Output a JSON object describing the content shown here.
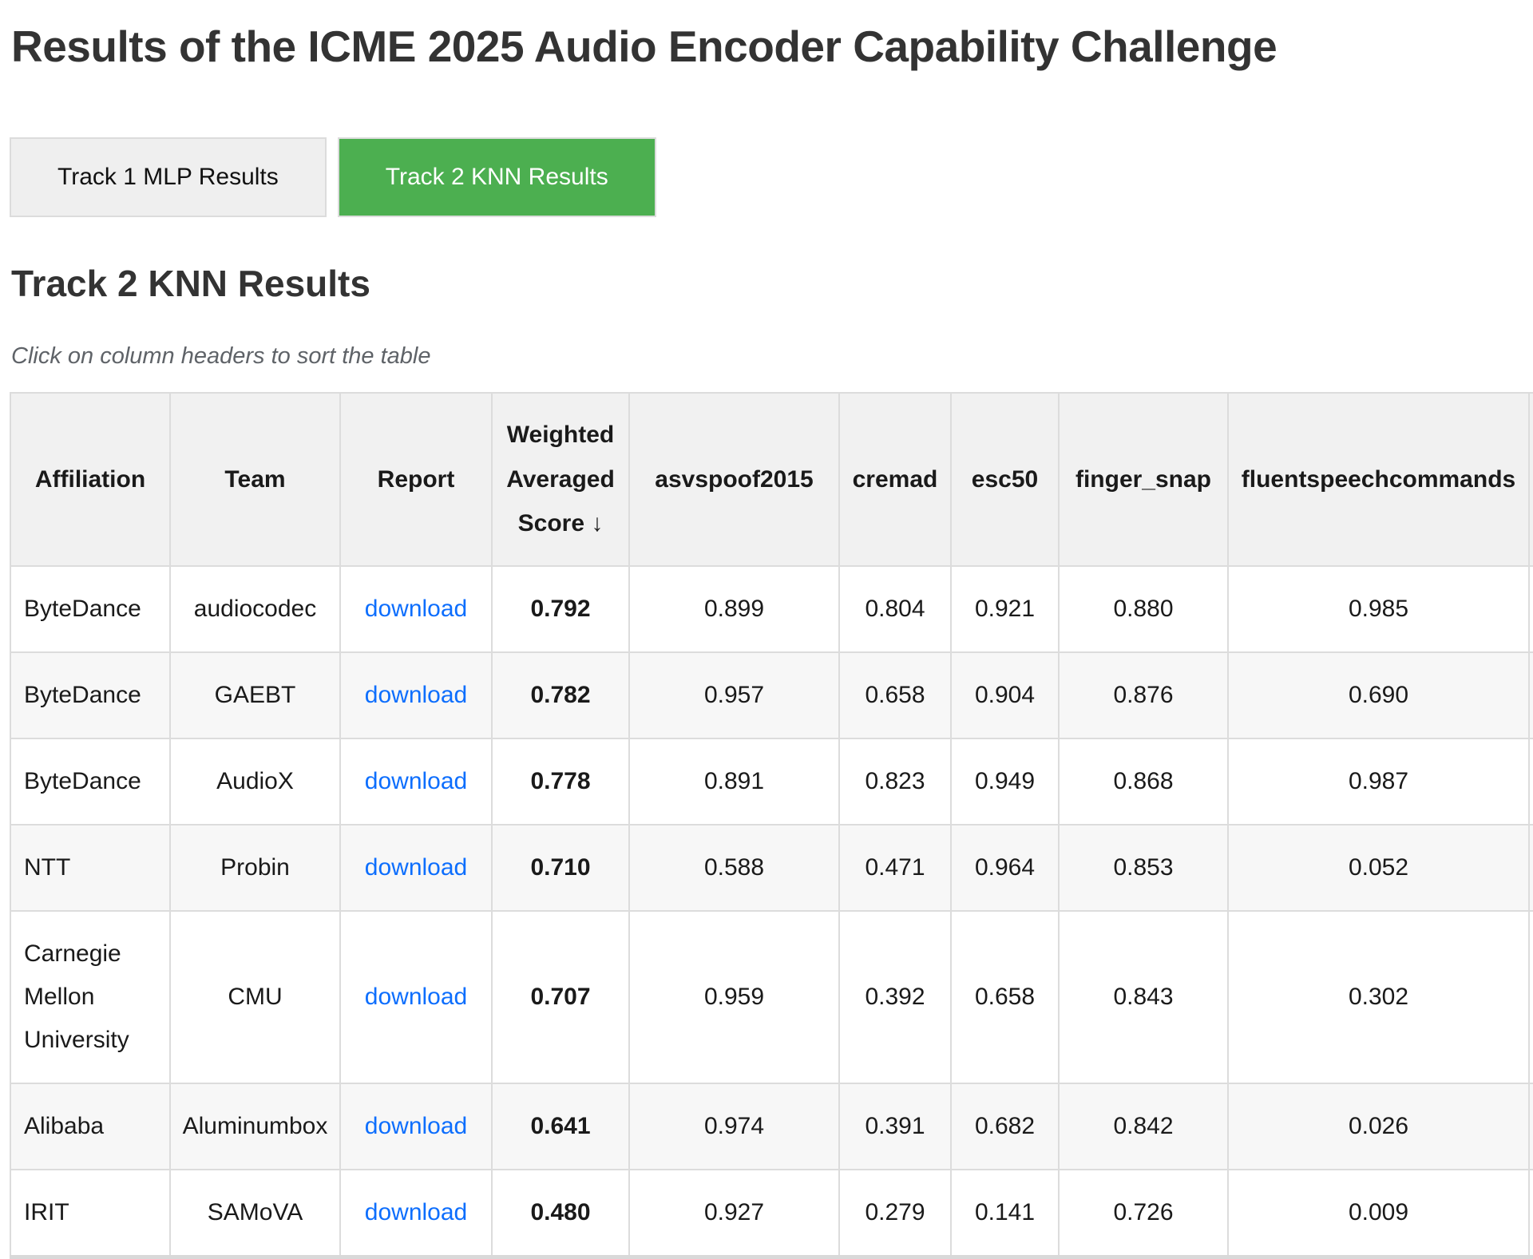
{
  "page": {
    "title": "Results of the ICME 2025 Audio Encoder Capability Challenge",
    "section_heading": "Track 2 KNN Results",
    "sort_hint": "Click on column headers to sort the table"
  },
  "tabs": [
    {
      "label": "Track 1 MLP Results",
      "active": false
    },
    {
      "label": "Track 2 KNN Results",
      "active": true
    }
  ],
  "table": {
    "columns": [
      {
        "key": "affiliation",
        "label": "Affiliation",
        "align": "left"
      },
      {
        "key": "team",
        "label": "Team"
      },
      {
        "key": "report",
        "label": "Report",
        "type": "link"
      },
      {
        "key": "weighted-averaged-score",
        "label": "Weighted Averaged Score",
        "sort_indicator": "↓",
        "bold": true
      },
      {
        "key": "asvspoof2015",
        "label": "asvspoof2015"
      },
      {
        "key": "cremad",
        "label": "cremad"
      },
      {
        "key": "esc50",
        "label": "esc50"
      },
      {
        "key": "finger-snap",
        "label": "finger_snap"
      },
      {
        "key": "fluentspeechcommands",
        "label": "fluentspeechcommands"
      },
      {
        "key": "extra",
        "label": ""
      }
    ],
    "rows": [
      {
        "cells": [
          "ByteDance",
          "audiocodec",
          "download",
          "0.792",
          "0.899",
          "0.804",
          "0.921",
          "0.880",
          "0.985",
          ""
        ]
      },
      {
        "cells": [
          "ByteDance",
          "GAEBT",
          "download",
          "0.782",
          "0.957",
          "0.658",
          "0.904",
          "0.876",
          "0.690",
          ""
        ]
      },
      {
        "cells": [
          "ByteDance",
          "AudioX",
          "download",
          "0.778",
          "0.891",
          "0.823",
          "0.949",
          "0.868",
          "0.987",
          ""
        ]
      },
      {
        "cells": [
          "NTT",
          "Probin",
          "download",
          "0.710",
          "0.588",
          "0.471",
          "0.964",
          "0.853",
          "0.052",
          ""
        ]
      },
      {
        "cells": [
          "Carnegie Mellon University",
          "CMU",
          "download",
          "0.707",
          "0.959",
          "0.392",
          "0.658",
          "0.843",
          "0.302",
          ""
        ]
      },
      {
        "cells": [
          "Alibaba",
          "Aluminumbox",
          "download",
          "0.641",
          "0.974",
          "0.391",
          "0.682",
          "0.842",
          "0.026",
          ""
        ]
      },
      {
        "cells": [
          "IRIT",
          "SAMoVA",
          "download",
          "0.480",
          "0.927",
          "0.279",
          "0.141",
          "0.726",
          "0.009",
          ""
        ]
      }
    ]
  },
  "colors": {
    "active_tab_background": "#4caf50",
    "active_tab_text": "#ffffff",
    "link_blue": "#0d6efd",
    "header_background": "#f1f1f1",
    "stripe_background": "#f7f7f7",
    "border": "#dcdcdc"
  }
}
